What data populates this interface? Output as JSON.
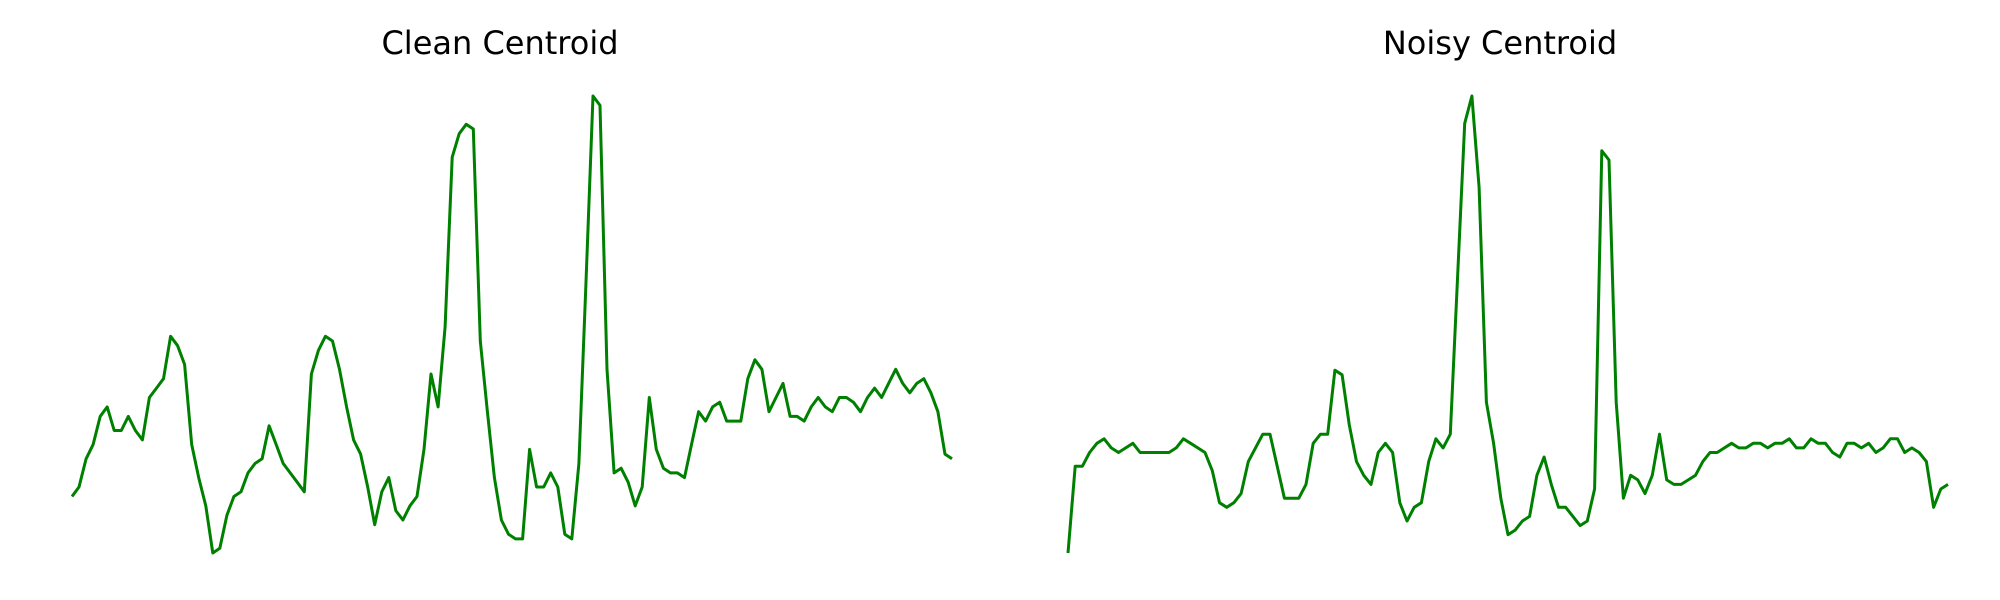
{
  "chart_data": [
    {
      "type": "line",
      "title": "Clean Centroid",
      "xlabel": "",
      "ylabel": "",
      "grid": false,
      "axes_visible": false,
      "line_color": "#008000",
      "y": [
        0.13,
        0.15,
        0.21,
        0.24,
        0.3,
        0.32,
        0.27,
        0.27,
        0.3,
        0.27,
        0.25,
        0.34,
        0.36,
        0.38,
        0.47,
        0.45,
        0.41,
        0.24,
        0.17,
        0.11,
        0.01,
        0.02,
        0.09,
        0.13,
        0.14,
        0.18,
        0.2,
        0.21,
        0.28,
        0.24,
        0.2,
        0.18,
        0.16,
        0.14,
        0.39,
        0.44,
        0.47,
        0.46,
        0.4,
        0.32,
        0.25,
        0.22,
        0.15,
        0.07,
        0.14,
        0.17,
        0.1,
        0.08,
        0.11,
        0.13,
        0.23,
        0.39,
        0.32,
        0.49,
        0.85,
        0.9,
        0.92,
        0.91,
        0.46,
        0.31,
        0.17,
        0.08,
        0.05,
        0.04,
        0.04,
        0.23,
        0.15,
        0.15,
        0.18,
        0.15,
        0.05,
        0.04,
        0.2,
        0.58,
        0.98,
        0.96,
        0.4,
        0.18,
        0.19,
        0.16,
        0.11,
        0.15,
        0.34,
        0.23,
        0.19,
        0.18,
        0.18,
        0.17,
        0.24,
        0.31,
        0.29,
        0.32,
        0.33,
        0.29,
        0.29,
        0.29,
        0.38,
        0.42,
        0.4,
        0.31,
        0.34,
        0.37,
        0.3,
        0.3,
        0.29,
        0.32,
        0.34,
        0.32,
        0.31,
        0.34,
        0.34,
        0.33,
        0.31,
        0.34,
        0.36,
        0.34,
        0.37,
        0.4,
        0.37,
        0.35,
        0.37,
        0.38,
        0.35,
        0.31,
        0.22,
        0.21
      ]
    },
    {
      "type": "line",
      "title": "Noisy Centroid",
      "xlabel": "",
      "ylabel": "",
      "grid": false,
      "axes_visible": false,
      "line_color": "#008000",
      "y": [
        0.0,
        0.19,
        0.19,
        0.22,
        0.24,
        0.25,
        0.23,
        0.22,
        0.23,
        0.24,
        0.22,
        0.22,
        0.22,
        0.22,
        0.22,
        0.23,
        0.25,
        0.24,
        0.23,
        0.22,
        0.18,
        0.11,
        0.1,
        0.11,
        0.13,
        0.2,
        0.23,
        0.26,
        0.26,
        0.19,
        0.12,
        0.12,
        0.12,
        0.15,
        0.24,
        0.26,
        0.26,
        0.4,
        0.39,
        0.28,
        0.2,
        0.17,
        0.15,
        0.22,
        0.24,
        0.22,
        0.11,
        0.07,
        0.1,
        0.11,
        0.2,
        0.25,
        0.23,
        0.26,
        0.6,
        0.94,
        1.0,
        0.8,
        0.33,
        0.24,
        0.12,
        0.04,
        0.05,
        0.07,
        0.08,
        0.17,
        0.21,
        0.15,
        0.1,
        0.1,
        0.08,
        0.06,
        0.07,
        0.14,
        0.88,
        0.86,
        0.33,
        0.12,
        0.17,
        0.16,
        0.13,
        0.17,
        0.26,
        0.16,
        0.15,
        0.15,
        0.16,
        0.17,
        0.2,
        0.22,
        0.22,
        0.23,
        0.24,
        0.23,
        0.23,
        0.24,
        0.24,
        0.23,
        0.24,
        0.24,
        0.25,
        0.23,
        0.23,
        0.25,
        0.24,
        0.24,
        0.22,
        0.21,
        0.24,
        0.24,
        0.23,
        0.24,
        0.22,
        0.23,
        0.25,
        0.25,
        0.22,
        0.23,
        0.22,
        0.2,
        0.1,
        0.14,
        0.15
      ]
    }
  ]
}
